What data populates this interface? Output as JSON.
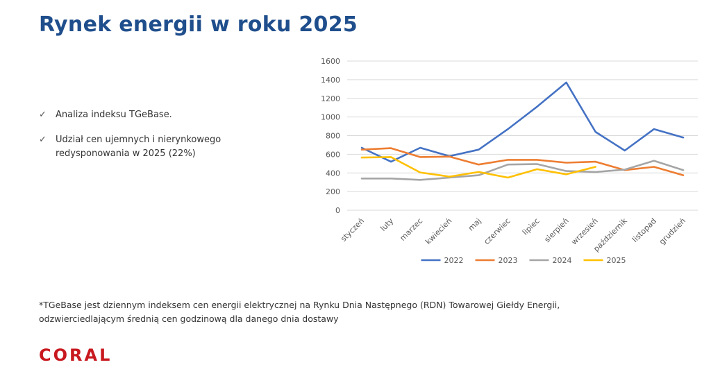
{
  "page": {
    "title": "Rynek energii w roku 2025",
    "bullets": [
      {
        "icon": "check-icon",
        "text": "Analiza indeksu TGeBase."
      },
      {
        "icon": "check-icon",
        "text": "Udział cen ujemnych i nierynkowego redysponowania w 2025 (22%)"
      }
    ],
    "footnote_line1": "*TGeBase jest dziennym indeksem cen energii elektrycznej na Rynku Dnia Następnego (RDN) Towarowej Giełdy Energii,",
    "footnote_line2": "odzwierciedlającym średnią cen godzinową dla danego dnia dostawy",
    "logo": "CORAL"
  },
  "colors": {
    "title": "#1f4e8c",
    "logo": "#c8191f",
    "grid": "#d9d9d9",
    "axis_text": "#595959"
  },
  "chart_data": {
    "type": "line",
    "title": "",
    "xlabel": "",
    "ylabel": "",
    "ylim": [
      0,
      1600
    ],
    "yticks": [
      0,
      200,
      400,
      600,
      800,
      1000,
      1200,
      1400,
      1600
    ],
    "grid": true,
    "legend_position": "bottom",
    "categories": [
      "styczeń",
      "luty",
      "marzec",
      "kwiecień",
      "maj",
      "czerwiec",
      "lipiec",
      "sierpień",
      "wrzesień",
      "październik",
      "listopad",
      "grudzień"
    ],
    "series": [
      {
        "name": "2022",
        "color": "#4472c4",
        "values": [
          670,
          520,
          670,
          580,
          650,
          870,
          1110,
          1370,
          840,
          640,
          870,
          780
        ]
      },
      {
        "name": "2023",
        "color": "#ed7d31",
        "values": [
          650,
          665,
          570,
          575,
          490,
          540,
          540,
          510,
          520,
          430,
          465,
          375
        ]
      },
      {
        "name": "2024",
        "color": "#a5a5a5",
        "values": [
          340,
          340,
          325,
          350,
          375,
          490,
          495,
          420,
          410,
          435,
          530,
          430
        ]
      },
      {
        "name": "2025",
        "color": "#ffc000",
        "values": [
          565,
          570,
          405,
          360,
          410,
          350,
          440,
          385,
          465,
          null,
          null,
          null
        ]
      }
    ]
  }
}
